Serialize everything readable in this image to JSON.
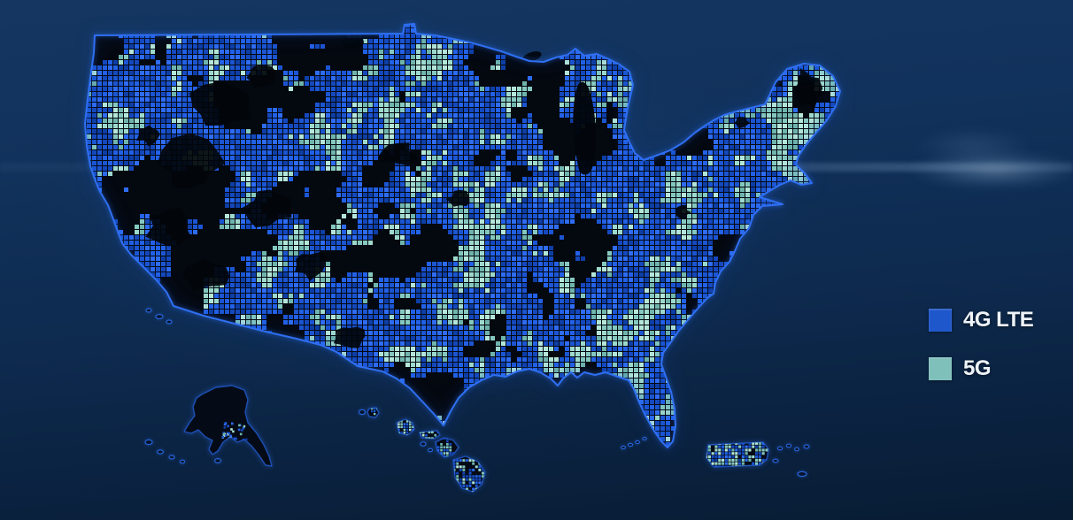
{
  "legend": {
    "items": [
      {
        "id": "4g-lte",
        "label": "4G LTE",
        "color": "#1e56cc"
      },
      {
        "id": "5g",
        "label": "5G",
        "color": "#7fc0ba"
      }
    ]
  },
  "map": {
    "palette": {
      "outline": "#2f6ff2",
      "land_base": "#04080f",
      "no_coverage": "#02060b",
      "lte_shades": [
        "#0e3ea6",
        "#1548bd",
        "#1b55d2",
        "#2261e8",
        "#2e6cf4"
      ],
      "five_g_shades": [
        "#6fb4ad",
        "#85c8c0",
        "#9ed9cd",
        "#b5e6d9"
      ],
      "background_top": "#143660",
      "background_bottom": "#081c33"
    }
  }
}
